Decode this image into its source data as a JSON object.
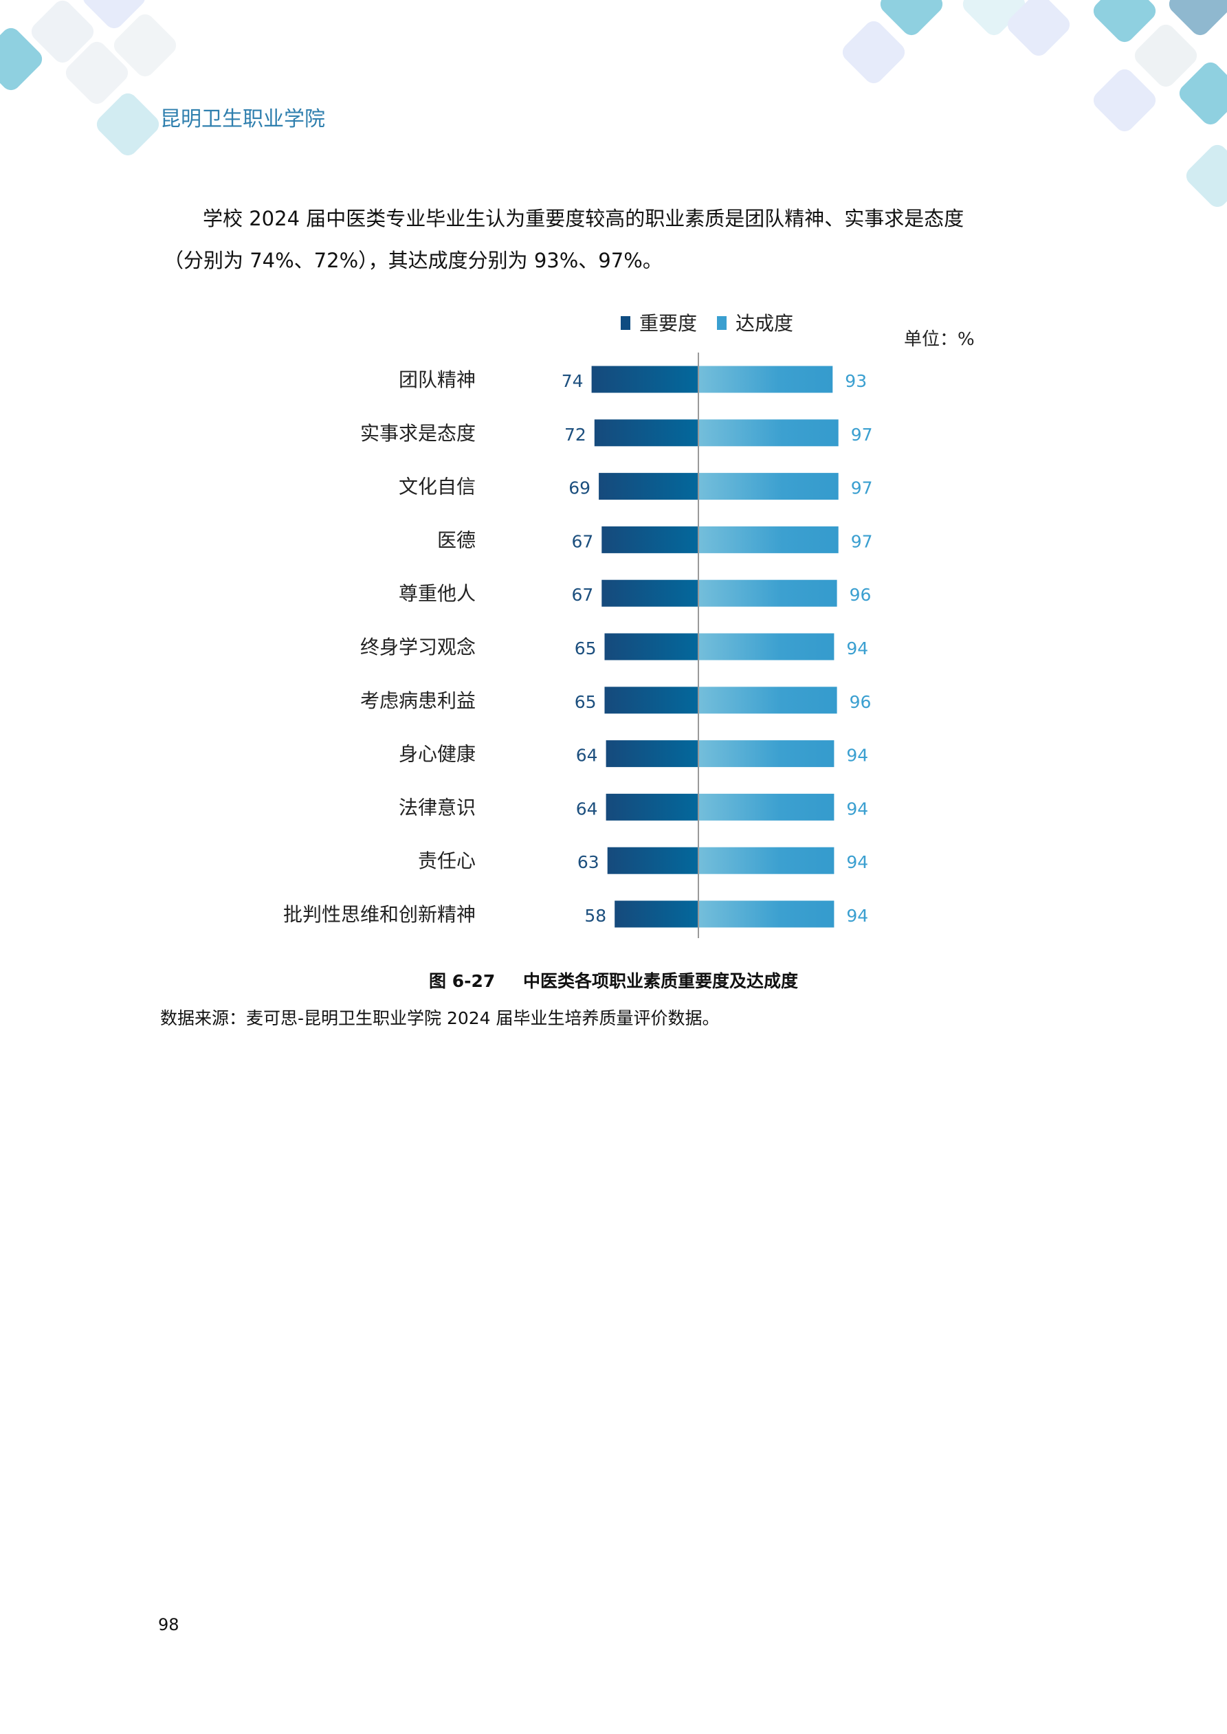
{
  "header": {
    "title": "昆明卫生职业学院"
  },
  "paragraph": {
    "line1": "学校 2024 届中医类专业毕业生认为重要度较高的职业素质是团队精神、实事求是态度",
    "line2": "（分别为 74%、72%），其达成度分别为 93%、97%。"
  },
  "chart_data": {
    "type": "bar",
    "orientation": "horizontal-diverging",
    "unit_label": "单位：%",
    "legend_placement": "top",
    "categories": [
      "团队精神",
      "实事求是态度",
      "文化自信",
      "医德",
      "尊重他人",
      "终身学习观念",
      "考虑病患利益",
      "身心健康",
      "法律意识",
      "责任心",
      "批判性思维和创新精神"
    ],
    "series": [
      {
        "name": "重要度",
        "color": "#0f4c81",
        "values": [
          74,
          72,
          69,
          67,
          67,
          65,
          65,
          64,
          64,
          63,
          58
        ]
      },
      {
        "name": "达成度",
        "color": "#3a9fd0",
        "values": [
          93,
          97,
          97,
          97,
          96,
          94,
          96,
          94,
          94,
          94,
          94
        ]
      }
    ],
    "grid": false
  },
  "caption": {
    "number": "图 6-27",
    "title": "中医类各项职业素质重要度及达成度"
  },
  "source": "数据来源：麦可思-昆明卫生职业学院 2024 届毕业生培养质量评价数据。",
  "page_number": "98",
  "colors": {
    "header": "#2f7fae",
    "importance_label": "#1c4f7e",
    "achievement_label": "#3a9fd0"
  }
}
